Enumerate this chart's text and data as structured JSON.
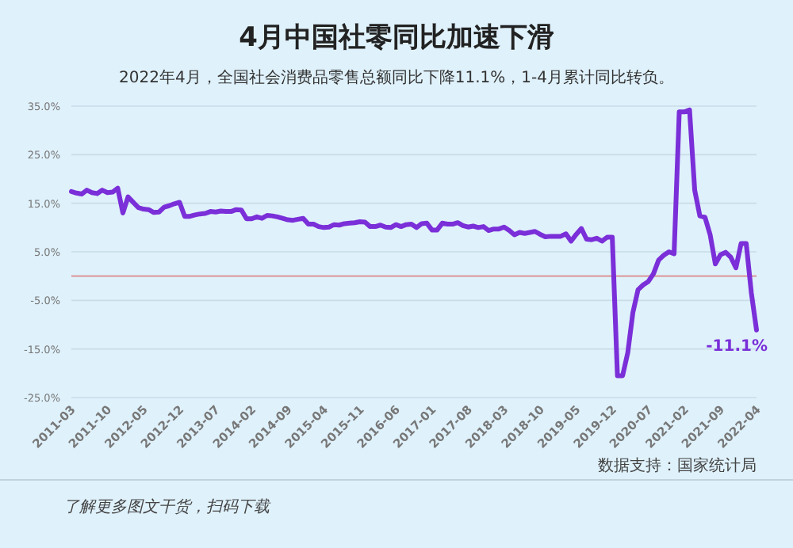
{
  "chart_data": {
    "type": "line",
    "title": "4月中国社零同比加速下滑",
    "subtitle": "2022年4月，全国社会消费品零售总额同比下降11.1%，1-4月累计同比转负。",
    "categories": [
      "2011-03",
      null,
      null,
      null,
      null,
      null,
      null,
      "2011-10",
      null,
      null,
      null,
      null,
      null,
      null,
      "2012-05",
      null,
      null,
      null,
      null,
      null,
      null,
      "2012-12",
      null,
      null,
      null,
      null,
      null,
      null,
      "2013-07",
      null,
      null,
      null,
      null,
      null,
      null,
      "2014-02",
      null,
      null,
      null,
      null,
      null,
      null,
      "2014-09",
      null,
      null,
      null,
      null,
      null,
      null,
      "2015-04",
      null,
      null,
      null,
      null,
      null,
      null,
      "2015-11",
      null,
      null,
      null,
      null,
      null,
      null,
      "2016-06",
      null,
      null,
      null,
      null,
      null,
      null,
      "2017-01",
      null,
      null,
      null,
      null,
      null,
      null,
      "2017-08",
      null,
      null,
      null,
      null,
      null,
      null,
      "2018-03",
      null,
      null,
      null,
      null,
      null,
      null,
      "2018-10",
      null,
      null,
      null,
      null,
      null,
      null,
      "2019-05",
      null,
      null,
      null,
      null,
      null,
      null,
      "2019-12",
      null,
      null,
      null,
      null,
      null,
      null,
      "2020-07",
      null,
      null,
      null,
      null,
      null,
      null,
      "2021-02",
      null,
      null,
      null,
      null,
      null,
      null,
      "2021-09",
      null,
      null,
      null,
      null,
      null,
      null,
      "2022-04"
    ],
    "series": [
      {
        "color": "#7a2fd8",
        "values": [
          17.4,
          17.1,
          16.9,
          17.7,
          17.2,
          17.0,
          17.7,
          17.2,
          17.3,
          18.1,
          13.0,
          16.3,
          15.2,
          14.1,
          13.8,
          13.7,
          13.1,
          13.2,
          14.2,
          14.5,
          14.9,
          15.2,
          12.3,
          12.3,
          12.6,
          12.8,
          12.9,
          13.3,
          13.2,
          13.4,
          13.3,
          13.3,
          13.7,
          13.6,
          11.8,
          11.8,
          12.2,
          11.9,
          12.5,
          12.4,
          12.2,
          11.9,
          11.6,
          11.5,
          11.7,
          11.9,
          10.7,
          10.7,
          10.2,
          10.0,
          10.1,
          10.6,
          10.5,
          10.8,
          10.9,
          11.0,
          11.2,
          11.1,
          10.2,
          10.2,
          10.5,
          10.1,
          10.0,
          10.6,
          10.2,
          10.6,
          10.7,
          10.0,
          10.8,
          10.9,
          9.5,
          9.5,
          10.9,
          10.7,
          10.7,
          11.0,
          10.4,
          10.1,
          10.3,
          10.0,
          10.2,
          9.4,
          9.7,
          9.7,
          10.1,
          9.4,
          8.5,
          9.0,
          8.8,
          9.0,
          9.2,
          8.6,
          8.1,
          8.2,
          8.2,
          8.2,
          8.7,
          7.2,
          8.6,
          9.8,
          7.6,
          7.5,
          7.8,
          7.2,
          8.0,
          8.0,
          -20.5,
          -20.5,
          -15.8,
          -7.5,
          -2.8,
          -1.8,
          -1.1,
          0.5,
          3.3,
          4.3,
          5.0,
          4.6,
          33.8,
          33.8,
          34.2,
          17.7,
          12.4,
          12.1,
          8.5,
          2.5,
          4.4,
          4.9,
          3.9,
          1.7,
          6.7,
          6.7,
          -3.5,
          -11.1
        ]
      }
    ],
    "ylim": [
      -25,
      35
    ],
    "yticks": [
      {
        "value": -25,
        "label": "-25.0%"
      },
      {
        "value": -15,
        "label": "-15.0%"
      },
      {
        "value": -5,
        "label": "-5.0%"
      },
      {
        "value": 5,
        "label": "5.0%"
      },
      {
        "value": 15,
        "label": "15.0%"
      },
      {
        "value": 25,
        "label": "25.0%"
      },
      {
        "value": 35,
        "label": "35.0%"
      }
    ],
    "grid": "y",
    "marker": "none",
    "line_style": "solid",
    "ref_lines": [
      {
        "axis": "y",
        "value": 0,
        "color": "#d98a8a"
      }
    ],
    "annotations": [
      {
        "text": "-11.1%",
        "x": "2022-04",
        "y": -11.1
      },
      "数据支持：国家统计局",
      "了解更多图文干货，扫码下载"
    ]
  }
}
